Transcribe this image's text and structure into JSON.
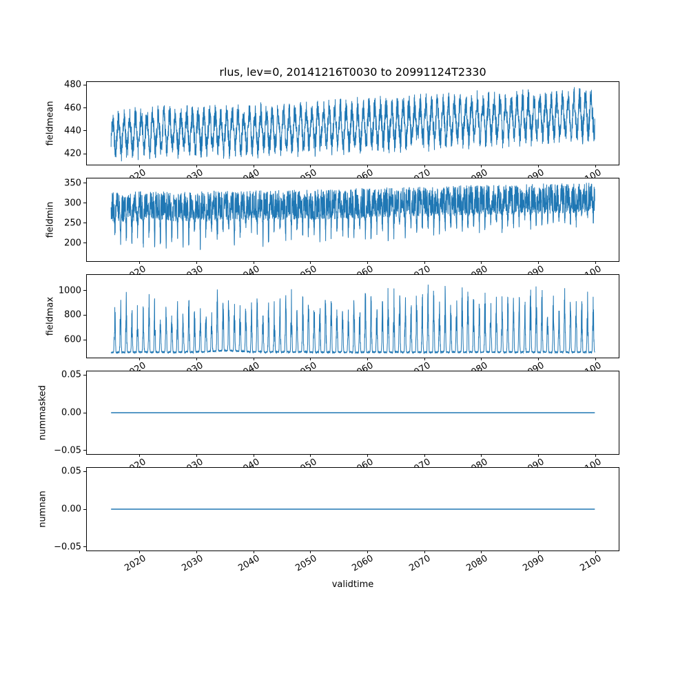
{
  "figure": {
    "title": "rlus, lev=0, 20141216T0030 to 20991124T2330",
    "xlabel": "validtime",
    "background": "#ffffff",
    "line_color": "#1f77b4",
    "axes_color": "#000000",
    "x_start": 2014.96,
    "x_end": 2099.9,
    "xlim": [
      2010.7,
      2104.1
    ],
    "xticks": {
      "values": [
        2020,
        2030,
        2040,
        2050,
        2060,
        2070,
        2080,
        2090,
        2100
      ],
      "labels": [
        "2020",
        "2030",
        "2040",
        "2050",
        "2060",
        "2070",
        "2080",
        "2090",
        "2100"
      ]
    }
  },
  "chart_data": [
    {
      "type": "line",
      "name": "fieldmean",
      "ylabel": "fieldmean",
      "pattern": "seasonal_band",
      "ylim": [
        410.5,
        482.5
      ],
      "ytick_values": [
        420,
        440,
        460,
        480
      ],
      "ytick_labels": [
        "420",
        "440",
        "460",
        "480"
      ],
      "line_width": 1,
      "envelope": {
        "years": [
          2015,
          2020,
          2030,
          2040,
          2050,
          2060,
          2070,
          2080,
          2090,
          2100
        ],
        "upper": [
          456,
          462,
          463,
          464,
          466,
          469,
          472,
          474,
          476,
          479
        ],
        "lower": [
          414,
          415,
          416,
          417,
          418,
          420,
          423,
          425,
          427,
          430
        ]
      }
    },
    {
      "type": "line",
      "name": "fieldmin",
      "ylabel": "fieldmin",
      "pattern": "min_spikes",
      "ylim": [
        155,
        362
      ],
      "ytick_values": [
        200,
        250,
        300,
        350
      ],
      "ytick_labels": [
        "200",
        "250",
        "300",
        "350"
      ],
      "line_width": 1,
      "envelope": {
        "years": [
          2015,
          2020,
          2030,
          2040,
          2050,
          2060,
          2070,
          2080,
          2090,
          2100
        ],
        "top": [
          328,
          330,
          331,
          332,
          334,
          338,
          342,
          346,
          349,
          352
        ],
        "trough": [
          172,
          180,
          185,
          190,
          195,
          200,
          212,
          222,
          230,
          240
        ],
        "band_depth": 76
      }
    },
    {
      "type": "line",
      "name": "fieldmax",
      "ylabel": "fieldmax",
      "pattern": "max_spikes",
      "ylim": [
        455,
        1126
      ],
      "ytick_values": [
        600,
        800,
        1000
      ],
      "ytick_labels": [
        "600",
        "800",
        "1000"
      ],
      "line_width": 1,
      "envelope": {
        "years": [
          2015,
          2020,
          2030,
          2035,
          2040,
          2050,
          2060,
          2070,
          2080,
          2090,
          2100
        ],
        "base": [
          490,
          492,
          492,
          505,
          494,
          492,
          492,
          492,
          493,
          492,
          492
        ],
        "peak": [
          890,
          980,
          965,
          950,
          975,
          970,
          975,
          1080,
          1030,
          1010,
          990
        ]
      }
    },
    {
      "type": "line",
      "name": "nummasked",
      "ylabel": "nummasked",
      "pattern": "constant",
      "value": 0,
      "ylim": [
        -0.055,
        0.055
      ],
      "ytick_values": [
        0.05,
        0,
        -0.05
      ],
      "ytick_labels": [
        "0.05",
        "0.00",
        "−0.05"
      ],
      "line_width": 1.5
    },
    {
      "type": "line",
      "name": "numnan",
      "ylabel": "numnan",
      "pattern": "constant",
      "value": 0,
      "ylim": [
        -0.055,
        0.055
      ],
      "ytick_values": [
        0.05,
        0,
        -0.05
      ],
      "ytick_labels": [
        "0.05",
        "0.00",
        "−0.05"
      ],
      "line_width": 1.5
    }
  ]
}
